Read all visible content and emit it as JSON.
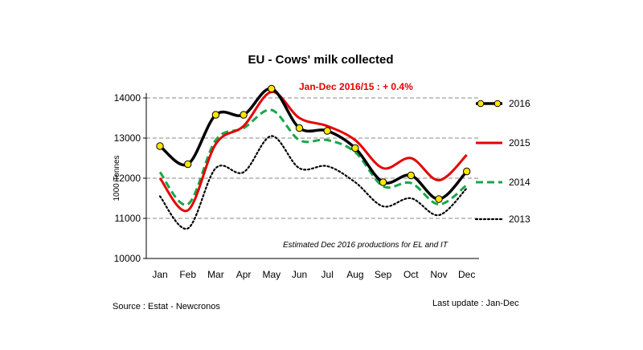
{
  "chart_data": {
    "type": "line",
    "title": "EU - Cows' milk collected",
    "ylabel": "1000 Tonnes",
    "xlabel": "",
    "categories": [
      "Jan",
      "Feb",
      "Mar",
      "Apr",
      "May",
      "Jun",
      "Jul",
      "Aug",
      "Sep",
      "Oct",
      "Nov",
      "Dec"
    ],
    "ylim": [
      10000,
      14000
    ],
    "yticks": [
      10000,
      11000,
      12000,
      13000,
      14000
    ],
    "grid": "horizontal dashed",
    "legend_position": "right",
    "series": [
      {
        "name": "2016",
        "color": "#000000",
        "style": "solid-markers",
        "values": [
          12800,
          12350,
          13580,
          13580,
          14230,
          13250,
          13180,
          12750,
          11900,
          12070,
          11480,
          12170
        ]
      },
      {
        "name": "2015",
        "color": "#e60000",
        "style": "solid",
        "values": [
          12000,
          11200,
          12850,
          13300,
          14150,
          13500,
          13300,
          12950,
          12250,
          12500,
          11950,
          12580
        ]
      },
      {
        "name": "2014",
        "color": "#1aa64a",
        "style": "dashed",
        "values": [
          12150,
          11350,
          12950,
          13250,
          13700,
          12950,
          12950,
          12650,
          11800,
          11880,
          11350,
          11830
        ]
      },
      {
        "name": "2013",
        "color": "#000000",
        "style": "dotted",
        "values": [
          11550,
          10750,
          12250,
          12150,
          13050,
          12250,
          12300,
          11900,
          11300,
          11500,
          11080,
          11750
        ]
      }
    ],
    "annotations": {
      "change": "Jan-Dec 2016/15 :  + 0.4%",
      "note": "Estimated Dec 2016 productions for EL and IT"
    }
  },
  "footer": {
    "source": "Source : Estat - Newcronos",
    "update": "Last update : Jan-Dec"
  }
}
